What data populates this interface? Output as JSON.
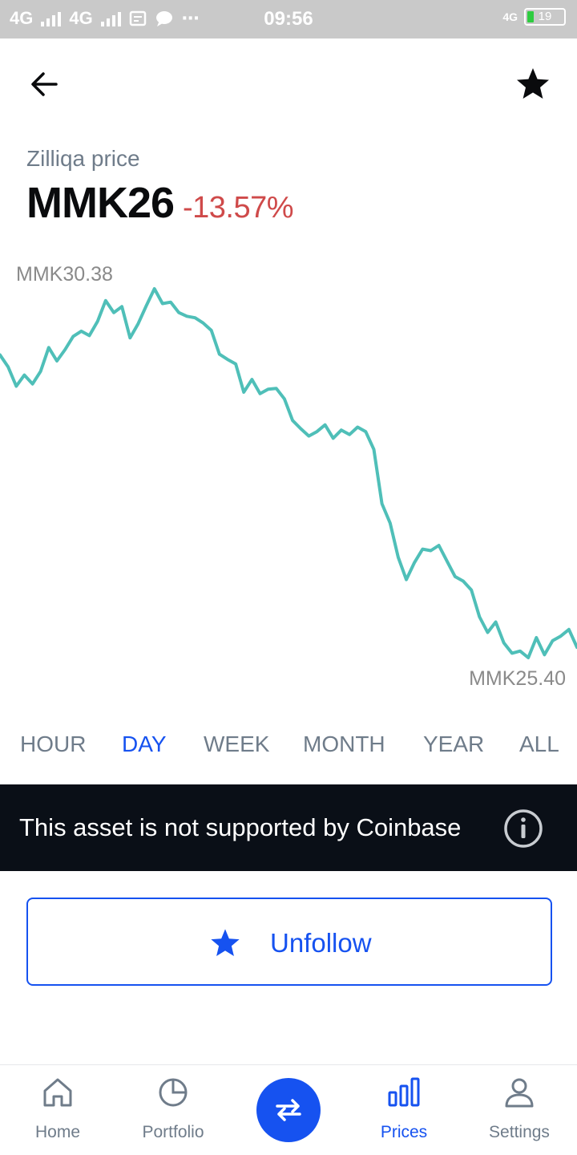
{
  "status_bar": {
    "network1": "4G",
    "network2": "4G",
    "time": "09:56",
    "net_right": "4G",
    "battery": "19"
  },
  "header": {
    "back_icon": "arrow-left-icon",
    "favorite_icon": "star-icon"
  },
  "asset": {
    "label": "Zilliqa price",
    "price": "MMK26",
    "change": "-13.57%",
    "change_color": "#cf4a4a"
  },
  "chart": {
    "high_label": "MMK30.38",
    "low_label": "MMK25.40",
    "line_color": "#4fbfb8"
  },
  "chart_data": {
    "type": "line",
    "ylim": [
      25.4,
      30.38
    ],
    "values": [
      29.51,
      29.35,
      29.09,
      29.24,
      29.12,
      29.29,
      29.61,
      29.43,
      29.58,
      29.76,
      29.83,
      29.77,
      29.96,
      30.24,
      30.08,
      30.16,
      29.74,
      29.93,
      30.17,
      30.4,
      30.2,
      30.22,
      30.08,
      30.03,
      30.01,
      29.94,
      29.84,
      29.52,
      29.45,
      29.39,
      29.01,
      29.18,
      28.99,
      29.05,
      29.06,
      28.92,
      28.63,
      28.52,
      28.42,
      28.48,
      28.57,
      28.39,
      28.5,
      28.44,
      28.54,
      28.48,
      28.24,
      27.51,
      27.25,
      26.79,
      26.49,
      26.72,
      26.9,
      26.88,
      26.95,
      26.74,
      26.53,
      26.47,
      26.35,
      25.99,
      25.78,
      25.92,
      25.64,
      25.5,
      25.53,
      25.44,
      25.71,
      25.48,
      25.67,
      25.73,
      25.82,
      25.58
    ]
  },
  "ranges": [
    "HOUR",
    "DAY",
    "WEEK",
    "MONTH",
    "YEAR",
    "ALL"
  ],
  "active_range": "DAY",
  "banner": {
    "text": "This asset is not supported by Coinbase",
    "icon": "info-icon"
  },
  "unfollow": {
    "label": "Unfollow",
    "icon": "star-icon",
    "accent": "#1652f0"
  },
  "nav": {
    "items": [
      {
        "label": "Home",
        "icon": "home-icon"
      },
      {
        "label": "Portfolio",
        "icon": "pie-chart-icon"
      },
      {
        "label": "Prices",
        "icon": "bar-chart-icon"
      },
      {
        "label": "Settings",
        "icon": "person-icon"
      }
    ],
    "trade_icon": "swap-arrows-icon",
    "active": "Prices"
  }
}
